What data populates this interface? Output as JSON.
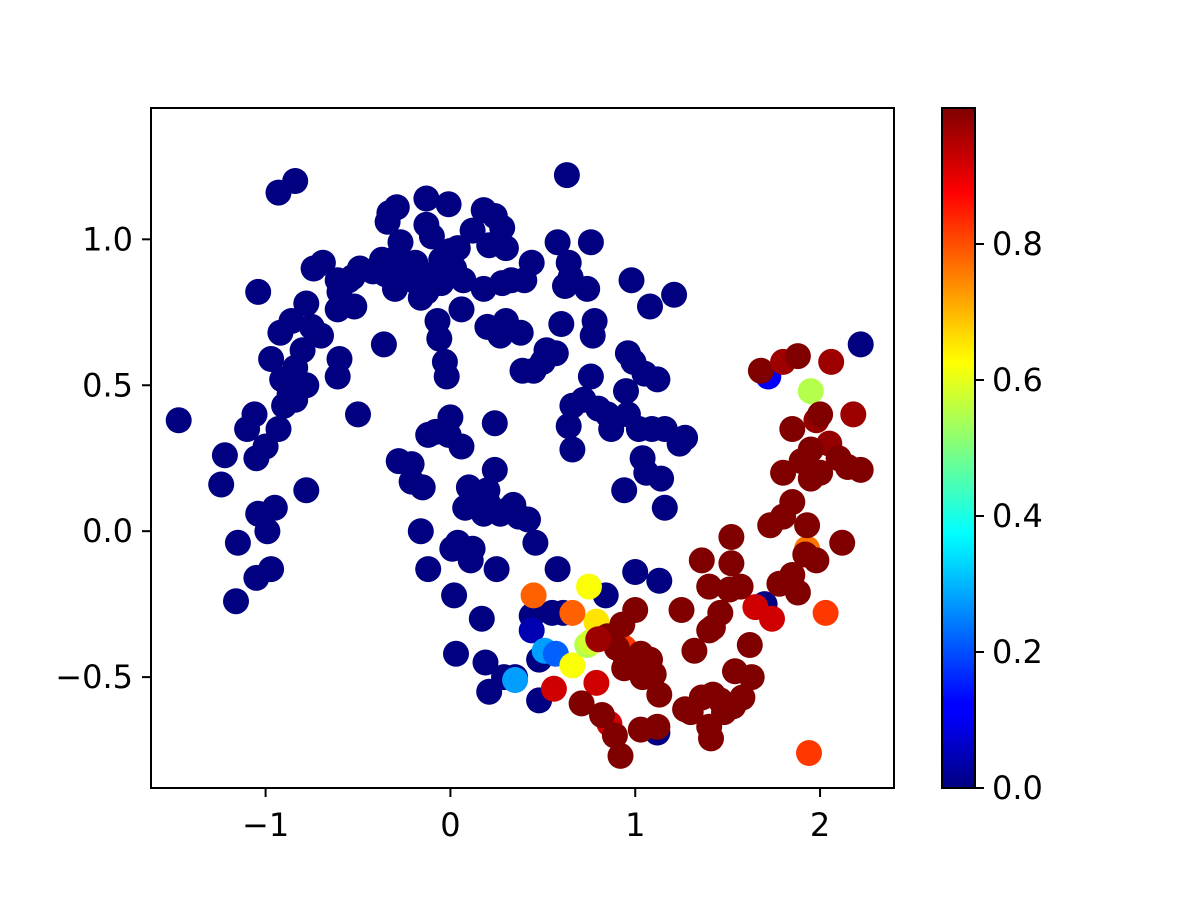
{
  "chart_data": {
    "type": "scatter",
    "title": "",
    "xlabel": "",
    "ylabel": "",
    "xlim": [
      -1.62,
      2.4
    ],
    "ylim": [
      -0.88,
      1.45
    ],
    "x_ticks": [
      {
        "value": -1,
        "label": "−1"
      },
      {
        "value": 0,
        "label": "0"
      },
      {
        "value": 1,
        "label": "1"
      },
      {
        "value": 2,
        "label": "2"
      }
    ],
    "y_ticks": [
      {
        "value": -0.5,
        "label": "−0.5"
      },
      {
        "value": 0.0,
        "label": "0.0"
      },
      {
        "value": 0.5,
        "label": "0.5"
      },
      {
        "value": 1.0,
        "label": "1.0"
      }
    ],
    "grid": false,
    "colormap": "jet",
    "colorbar": {
      "range": [
        0.0,
        1.0
      ],
      "ticks": [
        {
          "value": 0.0,
          "label": "0.0"
        },
        {
          "value": 0.2,
          "label": "0.2"
        },
        {
          "value": 0.4,
          "label": "0.4"
        },
        {
          "value": 0.6,
          "label": "0.6"
        },
        {
          "value": 0.8,
          "label": "0.8"
        }
      ]
    },
    "points": [
      [
        -1.47,
        0.38,
        0
      ],
      [
        -1.22,
        0.26,
        0
      ],
      [
        -1.24,
        0.16,
        0
      ],
      [
        -1.15,
        -0.04,
        0
      ],
      [
        -1.16,
        -0.24,
        0
      ],
      [
        -1.04,
        0.06,
        0
      ],
      [
        -1.05,
        -0.16,
        0
      ],
      [
        -0.97,
        -0.13,
        0
      ],
      [
        -0.99,
        0.0,
        0
      ],
      [
        -0.95,
        0.08,
        0
      ],
      [
        -1.05,
        0.25,
        0
      ],
      [
        -1.1,
        0.35,
        0
      ],
      [
        -1.0,
        0.29,
        0
      ],
      [
        -1.06,
        0.4,
        0
      ],
      [
        -0.93,
        0.35,
        0
      ],
      [
        -0.9,
        0.43,
        0
      ],
      [
        -0.87,
        0.47,
        0
      ],
      [
        -0.91,
        0.52,
        0
      ],
      [
        -0.84,
        0.56,
        0
      ],
      [
        -0.97,
        0.59,
        0
      ],
      [
        -0.92,
        0.68,
        0
      ],
      [
        -0.86,
        0.72,
        0
      ],
      [
        -0.78,
        0.78,
        0
      ],
      [
        -0.75,
        0.7,
        0
      ],
      [
        -0.7,
        0.67,
        0
      ],
      [
        -0.8,
        0.62,
        0
      ],
      [
        -0.78,
        0.5,
        0
      ],
      [
        -0.84,
        0.45,
        0
      ],
      [
        -0.78,
        0.14,
        0
      ],
      [
        -1.04,
        0.82,
        0
      ],
      [
        -0.93,
        1.16,
        0
      ],
      [
        -0.84,
        1.2,
        0
      ],
      [
        -0.74,
        0.9,
        0
      ],
      [
        -0.69,
        0.92,
        0
      ],
      [
        -0.61,
        0.86,
        0
      ],
      [
        -0.6,
        0.82,
        0
      ],
      [
        -0.53,
        0.87,
        0
      ],
      [
        -0.49,
        0.9,
        0
      ],
      [
        -0.52,
        0.77,
        0
      ],
      [
        -0.61,
        0.76,
        0
      ],
      [
        -0.6,
        0.59,
        0
      ],
      [
        -0.61,
        0.53,
        0
      ],
      [
        -0.5,
        0.4,
        0
      ],
      [
        -0.36,
        0.64,
        0
      ],
      [
        -0.34,
        1.06,
        0
      ],
      [
        -0.29,
        1.11,
        0
      ],
      [
        -0.27,
        0.99,
        0
      ],
      [
        -0.31,
        0.93,
        0
      ],
      [
        -0.24,
        0.89,
        0
      ],
      [
        -0.27,
        0.86,
        0
      ],
      [
        -0.3,
        0.83,
        0
      ],
      [
        -0.2,
        0.86,
        0
      ],
      [
        -0.15,
        0.88,
        0
      ],
      [
        -0.19,
        0.92,
        0
      ],
      [
        -0.13,
        0.82,
        0
      ],
      [
        -0.16,
        0.8,
        0
      ],
      [
        -0.1,
        1.01,
        0
      ],
      [
        -0.13,
        1.05,
        0
      ],
      [
        -0.13,
        1.14,
        0
      ],
      [
        -0.01,
        1.12,
        0
      ],
      [
        -0.05,
        0.93,
        0
      ],
      [
        0.0,
        0.96,
        0
      ],
      [
        0.04,
        0.97,
        0
      ],
      [
        0.02,
        0.9,
        0
      ],
      [
        0.07,
        0.86,
        0
      ],
      [
        -0.05,
        0.85,
        0
      ],
      [
        -0.07,
        0.72,
        0
      ],
      [
        -0.06,
        0.66,
        0
      ],
      [
        -0.03,
        0.58,
        0
      ],
      [
        -0.02,
        0.53,
        0
      ],
      [
        0.06,
        0.76,
        0
      ],
      [
        0.12,
        1.03,
        0
      ],
      [
        0.18,
        1.1,
        0
      ],
      [
        0.21,
        0.98,
        0
      ],
      [
        0.24,
        1.08,
        0
      ],
      [
        0.28,
        1.04,
        0
      ],
      [
        0.3,
        0.97,
        0
      ],
      [
        0.28,
        0.85,
        0
      ],
      [
        0.33,
        0.86,
        0
      ],
      [
        0.4,
        0.86,
        0
      ],
      [
        0.44,
        0.92,
        0
      ],
      [
        0.18,
        0.83,
        0
      ],
      [
        0.2,
        0.7,
        0
      ],
      [
        0.27,
        0.67,
        0
      ],
      [
        0.3,
        0.72,
        0
      ],
      [
        0.38,
        0.68,
        0
      ],
      [
        0.39,
        0.55,
        0
      ],
      [
        0.45,
        0.55,
        0
      ],
      [
        0.5,
        0.58,
        0
      ],
      [
        0.52,
        0.62,
        0
      ],
      [
        0.57,
        0.61,
        0
      ],
      [
        0.6,
        0.71,
        0
      ],
      [
        0.62,
        0.84,
        0
      ],
      [
        0.58,
        0.99,
        0
      ],
      [
        0.64,
        0.92,
        0
      ],
      [
        0.65,
        0.87,
        0
      ],
      [
        0.63,
        1.22,
        0
      ],
      [
        0.76,
        0.99,
        0
      ],
      [
        0.74,
        0.83,
        0
      ],
      [
        0.78,
        0.72,
        0
      ],
      [
        0.77,
        0.67,
        0
      ],
      [
        0.76,
        0.53,
        0
      ],
      [
        0.66,
        0.43,
        0
      ],
      [
        0.64,
        0.36,
        0
      ],
      [
        0.66,
        0.28,
        0
      ],
      [
        0.72,
        0.45,
        0
      ],
      [
        0.8,
        0.42,
        0
      ],
      [
        0.85,
        0.4,
        0
      ],
      [
        0.87,
        0.35,
        0
      ],
      [
        0.95,
        0.48,
        0
      ],
      [
        0.96,
        0.4,
        0
      ],
      [
        0.94,
        0.14,
        0
      ],
      [
        0.98,
        0.86,
        0
      ],
      [
        1.08,
        0.77,
        0
      ],
      [
        0.96,
        0.61,
        0
      ],
      [
        0.99,
        0.58,
        0
      ],
      [
        1.05,
        0.54,
        0
      ],
      [
        1.12,
        0.52,
        0
      ],
      [
        1.02,
        0.35,
        0
      ],
      [
        1.09,
        0.35,
        0
      ],
      [
        1.16,
        0.35,
        0
      ],
      [
        1.24,
        0.3,
        0
      ],
      [
        1.27,
        0.32,
        0
      ],
      [
        1.04,
        0.25,
        0
      ],
      [
        1.06,
        0.2,
        0
      ],
      [
        1.14,
        0.18,
        0
      ],
      [
        1.16,
        0.08,
        0
      ],
      [
        1.21,
        0.81,
        0
      ],
      [
        2.22,
        0.64,
        0
      ],
      [
        -0.33,
        1.09,
        0
      ],
      [
        -0.35,
        0.88,
        0
      ],
      [
        -0.55,
        0.86,
        0
      ],
      [
        -0.37,
        0.93,
        0
      ],
      [
        -0.42,
        0.89,
        0
      ],
      [
        -0.12,
        0.33,
        0
      ],
      [
        -0.08,
        0.34,
        0
      ],
      [
        -0.01,
        0.33,
        0
      ],
      [
        0.0,
        0.39,
        0
      ],
      [
        0.06,
        0.29,
        0
      ],
      [
        0.24,
        0.37,
        0
      ],
      [
        -0.28,
        0.24,
        0
      ],
      [
        -0.21,
        0.23,
        0
      ],
      [
        -0.21,
        0.17,
        0
      ],
      [
        -0.15,
        0.15,
        0
      ],
      [
        0.1,
        0.15,
        0
      ],
      [
        0.12,
        0.09,
        0
      ],
      [
        0.18,
        0.06,
        0
      ],
      [
        0.2,
        0.1,
        0
      ],
      [
        0.2,
        0.14,
        0
      ],
      [
        0.24,
        0.21,
        0
      ],
      [
        0.27,
        0.06,
        0
      ],
      [
        0.3,
        0.07,
        0
      ],
      [
        0.34,
        0.09,
        0
      ],
      [
        0.37,
        0.05,
        0
      ],
      [
        0.42,
        0.04,
        0
      ],
      [
        0.46,
        -0.04,
        0
      ],
      [
        0.08,
        0.08,
        0
      ],
      [
        0.04,
        -0.04,
        0
      ],
      [
        0.01,
        -0.06,
        0
      ],
      [
        -0.16,
        0.0,
        0
      ],
      [
        -0.12,
        -0.13,
        0
      ],
      [
        0.02,
        -0.22,
        0
      ],
      [
        0.12,
        -0.06,
        0
      ],
      [
        0.11,
        -0.1,
        0
      ],
      [
        0.25,
        -0.13,
        0
      ],
      [
        0.17,
        -0.3,
        0
      ],
      [
        0.03,
        -0.42,
        0
      ],
      [
        0.19,
        -0.45,
        0
      ],
      [
        0.21,
        -0.55,
        0
      ],
      [
        0.29,
        -0.5,
        0
      ],
      [
        0.44,
        -0.29,
        0
      ],
      [
        0.58,
        -0.13,
        0
      ],
      [
        0.84,
        -0.22,
        0
      ],
      [
        1.0,
        -0.14,
        0
      ],
      [
        1.13,
        -0.17,
        0
      ],
      [
        0.55,
        -0.28,
        0
      ],
      [
        0.48,
        -0.44,
        0
      ],
      [
        0.48,
        -0.58,
        0
      ],
      [
        0.61,
        -0.28,
        0
      ],
      [
        0.35,
        -0.5,
        0
      ],
      [
        1.7,
        -0.25,
        0
      ],
      [
        1.12,
        -0.69,
        0
      ],
      [
        0.44,
        -0.34,
        0.05
      ],
      [
        1.72,
        0.53,
        0.12
      ],
      [
        0.51,
        -0.41,
        0.28
      ],
      [
        0.57,
        -0.42,
        0.22
      ],
      [
        0.35,
        -0.51,
        0.28
      ],
      [
        1.95,
        0.48,
        0.55
      ],
      [
        0.75,
        -0.19,
        0.62
      ],
      [
        0.79,
        -0.31,
        0.65
      ],
      [
        0.66,
        -0.46,
        0.62
      ],
      [
        0.74,
        -0.39,
        0.55
      ],
      [
        0.76,
        -0.38,
        0.58
      ],
      [
        0.45,
        -0.22,
        0.78
      ],
      [
        0.66,
        -0.28,
        0.78
      ],
      [
        0.94,
        -0.4,
        0.82
      ],
      [
        1.93,
        -0.06,
        0.76
      ],
      [
        2.03,
        -0.28,
        0.82
      ],
      [
        1.94,
        -0.76,
        0.82
      ],
      [
        0.56,
        -0.54,
        0.92
      ],
      [
        0.79,
        -0.52,
        0.92
      ],
      [
        0.86,
        -0.66,
        0.92
      ],
      [
        1.65,
        -0.26,
        0.92
      ],
      [
        1.74,
        -0.3,
        0.92
      ],
      [
        1.68,
        0.55,
        1.0
      ],
      [
        1.8,
        0.58,
        0.97
      ],
      [
        1.88,
        0.6,
        1.0
      ],
      [
        2.06,
        0.58,
        0.97
      ],
      [
        2.18,
        0.4,
        0.97
      ],
      [
        1.85,
        0.35,
        1.0
      ],
      [
        1.98,
        0.38,
        0.98
      ],
      [
        2.05,
        0.3,
        0.98
      ],
      [
        1.8,
        0.2,
        1.0
      ],
      [
        1.9,
        0.24,
        1.0
      ],
      [
        1.95,
        0.18,
        1.0
      ],
      [
        2.0,
        0.2,
        1.0
      ],
      [
        2.1,
        0.25,
        1.0
      ],
      [
        2.15,
        0.22,
        1.0
      ],
      [
        2.22,
        0.21,
        1.0
      ],
      [
        1.85,
        0.1,
        1.0
      ],
      [
        1.8,
        0.05,
        1.0
      ],
      [
        1.73,
        0.02,
        1.0
      ],
      [
        1.93,
        0.02,
        1.0
      ],
      [
        2.12,
        -0.04,
        1.0
      ],
      [
        1.98,
        -0.1,
        1.0
      ],
      [
        1.92,
        -0.08,
        1.0
      ],
      [
        1.85,
        -0.15,
        1.0
      ],
      [
        1.78,
        -0.18,
        1.0
      ],
      [
        1.88,
        -0.21,
        1.0
      ],
      [
        1.52,
        -0.02,
        1.0
      ],
      [
        1.52,
        -0.11,
        1.0
      ],
      [
        1.36,
        -0.1,
        1.0
      ],
      [
        1.4,
        -0.19,
        1.0
      ],
      [
        1.51,
        -0.2,
        1.0
      ],
      [
        1.57,
        -0.19,
        1.0
      ],
      [
        1.25,
        -0.27,
        1.0
      ],
      [
        1.46,
        -0.28,
        1.0
      ],
      [
        1.42,
        -0.33,
        1.0
      ],
      [
        1.4,
        -0.34,
        1.0
      ],
      [
        1.32,
        -0.41,
        1.0
      ],
      [
        1.62,
        -0.39,
        1.0
      ],
      [
        1.54,
        -0.48,
        1.0
      ],
      [
        1.63,
        -0.5,
        1.0
      ],
      [
        1.0,
        -0.27,
        1.0
      ],
      [
        0.93,
        -0.32,
        1.0
      ],
      [
        0.85,
        -0.36,
        1.0
      ],
      [
        0.9,
        -0.4,
        1.0
      ],
      [
        0.95,
        -0.45,
        1.0
      ],
      [
        1.03,
        -0.42,
        1.0
      ],
      [
        1.08,
        -0.44,
        1.0
      ],
      [
        1.1,
        -0.49,
        1.0
      ],
      [
        1.04,
        -0.5,
        1.0
      ],
      [
        1.13,
        -0.56,
        1.0
      ],
      [
        0.94,
        -0.47,
        1.0
      ],
      [
        0.71,
        -0.59,
        1.0
      ],
      [
        0.82,
        -0.63,
        1.0
      ],
      [
        0.89,
        -0.7,
        1.0
      ],
      [
        0.92,
        -0.77,
        1.0
      ],
      [
        1.03,
        -0.68,
        1.0
      ],
      [
        1.12,
        -0.67,
        1.0
      ],
      [
        1.27,
        -0.61,
        1.0
      ],
      [
        1.3,
        -0.62,
        1.0
      ],
      [
        1.36,
        -0.57,
        1.0
      ],
      [
        1.42,
        -0.56,
        1.0
      ],
      [
        1.46,
        -0.58,
        1.0
      ],
      [
        1.48,
        -0.62,
        1.0
      ],
      [
        1.53,
        -0.6,
        1.0
      ],
      [
        1.58,
        -0.57,
        1.0
      ],
      [
        1.4,
        -0.67,
        1.0
      ],
      [
        1.41,
        -0.71,
        1.0
      ],
      [
        1.95,
        0.28,
        1.0
      ],
      [
        2.0,
        0.4,
        1.0
      ],
      [
        0.8,
        -0.37,
        0.97
      ]
    ]
  }
}
